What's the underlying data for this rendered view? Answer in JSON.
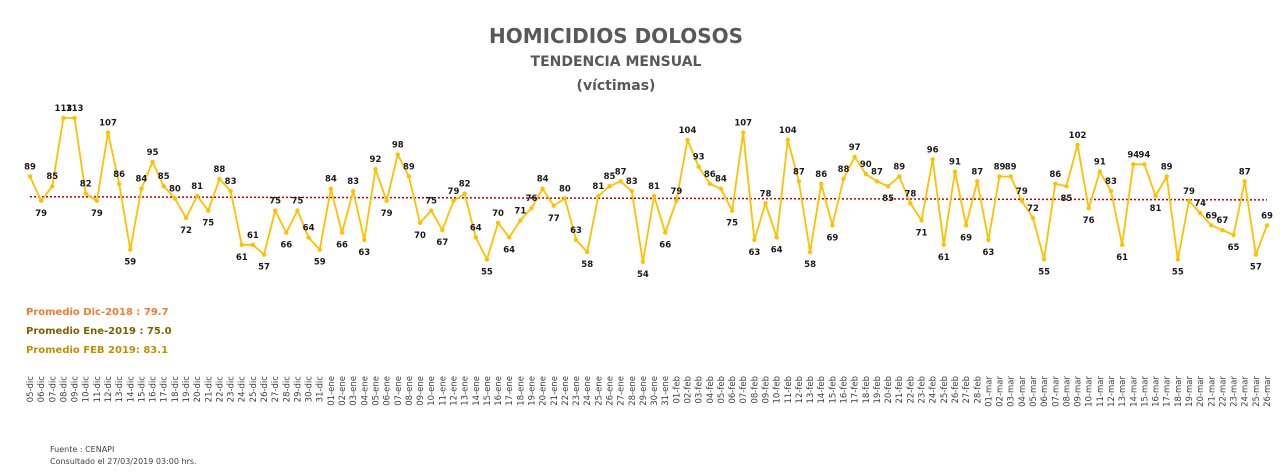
{
  "chart_data": {
    "type": "line",
    "title": "HOMICIDIOS DOLOSOS",
    "subtitle": "TENDENCIA MENSUAL",
    "unit_label": "(víctimas)",
    "categories": [
      "05-dic",
      "06-dic",
      "07-dic",
      "08-dic",
      "09-dic",
      "10-dic",
      "11-dic",
      "12-dic",
      "13-dic",
      "14-dic",
      "15-dic",
      "16-dic",
      "17-dic",
      "18-dic",
      "19-dic",
      "20-dic",
      "21-dic",
      "22-dic",
      "23-dic",
      "24-dic",
      "25-dic",
      "26-dic",
      "27-dic",
      "28-dic",
      "29-dic",
      "30-dic",
      "31-dic",
      "01-ene",
      "02-ene",
      "03-ene",
      "04-ene",
      "05-ene",
      "06-ene",
      "07-ene",
      "08-ene",
      "09-ene",
      "10-ene",
      "11-ene",
      "12-ene",
      "13-ene",
      "14-ene",
      "15-ene",
      "16-ene",
      "17-ene",
      "18-ene",
      "19-ene",
      "20-ene",
      "21-ene",
      "22-ene",
      "23-ene",
      "24-ene",
      "25-ene",
      "26-ene",
      "27-ene",
      "28-ene",
      "29-ene",
      "30-ene",
      "31-ene",
      "01-feb",
      "02-feb",
      "03-feb",
      "04-feb",
      "05-feb",
      "06-feb",
      "07-feb",
      "08-feb",
      "09-feb",
      "10-feb",
      "11-feb",
      "12-feb",
      "13-feb",
      "14-feb",
      "15-feb",
      "16-feb",
      "17-feb",
      "18-feb",
      "19-feb",
      "20-feb",
      "21-feb",
      "22-feb",
      "23-feb",
      "24-feb",
      "25-feb",
      "26-feb",
      "27-feb",
      "28-feb",
      "01-mar",
      "02-mar",
      "03-mar",
      "04-mar",
      "05-mar",
      "06-mar",
      "07-mar",
      "08-mar",
      "09-mar",
      "10-mar",
      "11-mar",
      "12-mar",
      "13-mar",
      "14-mar",
      "15-mar",
      "16-mar",
      "17-mar",
      "18-mar",
      "19-mar",
      "20-mar",
      "21-mar",
      "22-mar",
      "23-mar",
      "24-mar",
      "25-mar",
      "26-mar"
    ],
    "series": [
      {
        "values": [
          89,
          79,
          85,
          113,
          113,
          82,
          79,
          107,
          86,
          59,
          84,
          95,
          85,
          80,
          72,
          81,
          75,
          88,
          83,
          61,
          61,
          57,
          75,
          66,
          75,
          64,
          59,
          84,
          66,
          83,
          63,
          92,
          79,
          98,
          89,
          70,
          75,
          67,
          79,
          82,
          64,
          55,
          70,
          64,
          71,
          76,
          84,
          77,
          80,
          63,
          58,
          81,
          85,
          87,
          83,
          54,
          81,
          66,
          79,
          104,
          93,
          86,
          84,
          75,
          107,
          63,
          78,
          64,
          104,
          87,
          58,
          86,
          69,
          88,
          97,
          90,
          87,
          85,
          89,
          78,
          71,
          96,
          61,
          91,
          69,
          87,
          63,
          89,
          89,
          79,
          72,
          55,
          86,
          85,
          102,
          76,
          91,
          83,
          61,
          94,
          94,
          81,
          89,
          55,
          79,
          74,
          69,
          67,
          65,
          87,
          57,
          69
        ],
        "color": "#FFC000"
      }
    ],
    "average_line": {
      "color": "#C00000",
      "from": 80.7,
      "to": 79.4
    },
    "ylim": [
      40,
      122
    ],
    "grid": false
  },
  "averages": [
    {
      "text": "Promedio Dic-2018  : 79.7",
      "color": "#ED7D31"
    },
    {
      "text": "Promedio Ene-2019 : 75.0",
      "color": "#7F6000"
    },
    {
      "text": "Promedio FEB 2019:  83.1",
      "color": "#BF9000"
    }
  ],
  "footer": {
    "source": "Fuente : CENAPI",
    "consulted": "Consultado el 27/03/2019  03:00 hrs."
  }
}
